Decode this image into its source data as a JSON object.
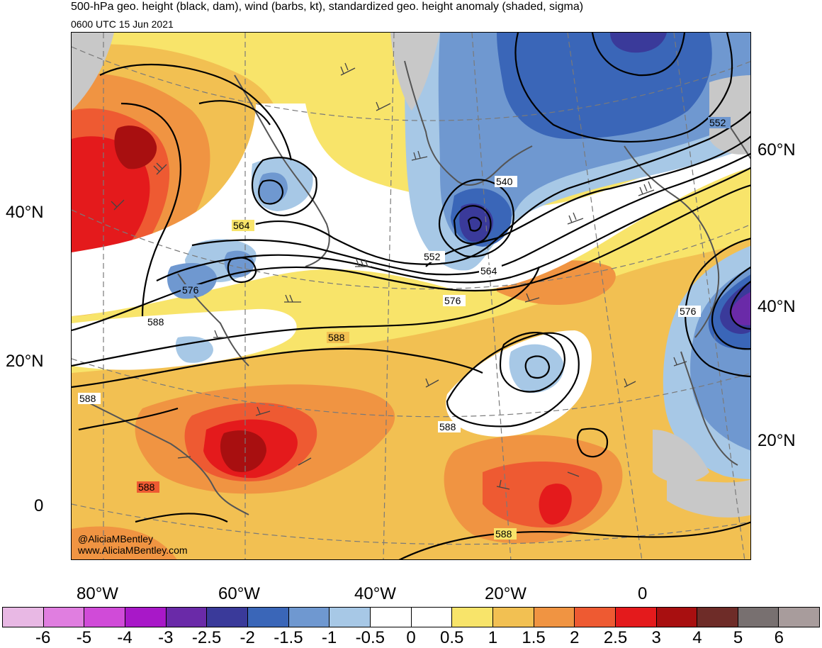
{
  "header": {
    "title": "500-hPa geo. height (black, dam), wind (barbs, kt), standardized geo. height anomaly (shaded, sigma)",
    "valid_time": "0600 UTC 15 Jun 2021"
  },
  "map": {
    "lat_labels_left": [
      "40°N",
      "20°N",
      "0"
    ],
    "lat_labels_right": [
      "60°N",
      "40°N",
      "20°N"
    ],
    "lon_labels_bottom": [
      "80°W",
      "60°W",
      "40°W",
      "20°W",
      "0"
    ],
    "contour_labels": [
      "564",
      "576",
      "588",
      "588",
      "588",
      "588",
      "588",
      "540",
      "552",
      "564",
      "576",
      "552",
      "576",
      "588"
    ],
    "credit_handle": "@AliciaMBentley",
    "credit_url": "www.AliciaMBentley.com"
  },
  "colorbar": {
    "labels": [
      "-6",
      "-5",
      "-4",
      "-3",
      "-2.5",
      "-2",
      "-1.5",
      "-1",
      "-0.5",
      "0",
      "0.5",
      "1",
      "1.5",
      "2",
      "2.5",
      "3",
      "4",
      "5",
      "6"
    ],
    "colors": [
      "#e8b8e4",
      "#e07ee0",
      "#d04bd8",
      "#a818c8",
      "#6a2aa8",
      "#3a3a9a",
      "#3a66b8",
      "#6f98d0",
      "#a7c8e6",
      "#ffffff",
      "#ffffff",
      "#f8e46a",
      "#f2c052",
      "#f09442",
      "#ee5a32",
      "#e41a1c",
      "#a80f10",
      "#6e2c28",
      "#787070",
      "#a89c9c"
    ]
  }
}
